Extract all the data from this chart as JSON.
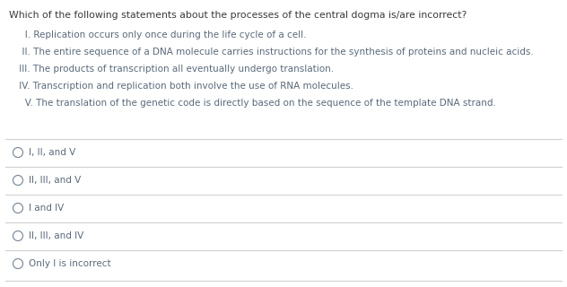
{
  "title": "Which of the following statements about the processes of the central dogma is/are incorrect?",
  "statements": [
    "   I. Replication occurs only once during the life cycle of a cell.",
    "  II. The entire sequence of a DNA molecule carries instructions for the synthesis of proteins and nucleic acids.",
    " III. The products of transcription all eventually undergo translation.",
    " IV. Transcription and replication both involve the use of RNA molecules.",
    "   V. The translation of the genetic code is directly based on the sequence of the template DNA strand."
  ],
  "options": [
    "I, II, and V",
    "II, III, and V",
    "I and IV",
    "II, III, and IV",
    "Only I is incorrect"
  ],
  "bg_color": "#ffffff",
  "text_color": "#5a6a7a",
  "title_color": "#3a3a3a",
  "line_color": "#d0d0d0",
  "circle_color": "#7a8a9a",
  "title_fontsize": 7.8,
  "statement_fontsize": 7.5,
  "option_fontsize": 7.5
}
